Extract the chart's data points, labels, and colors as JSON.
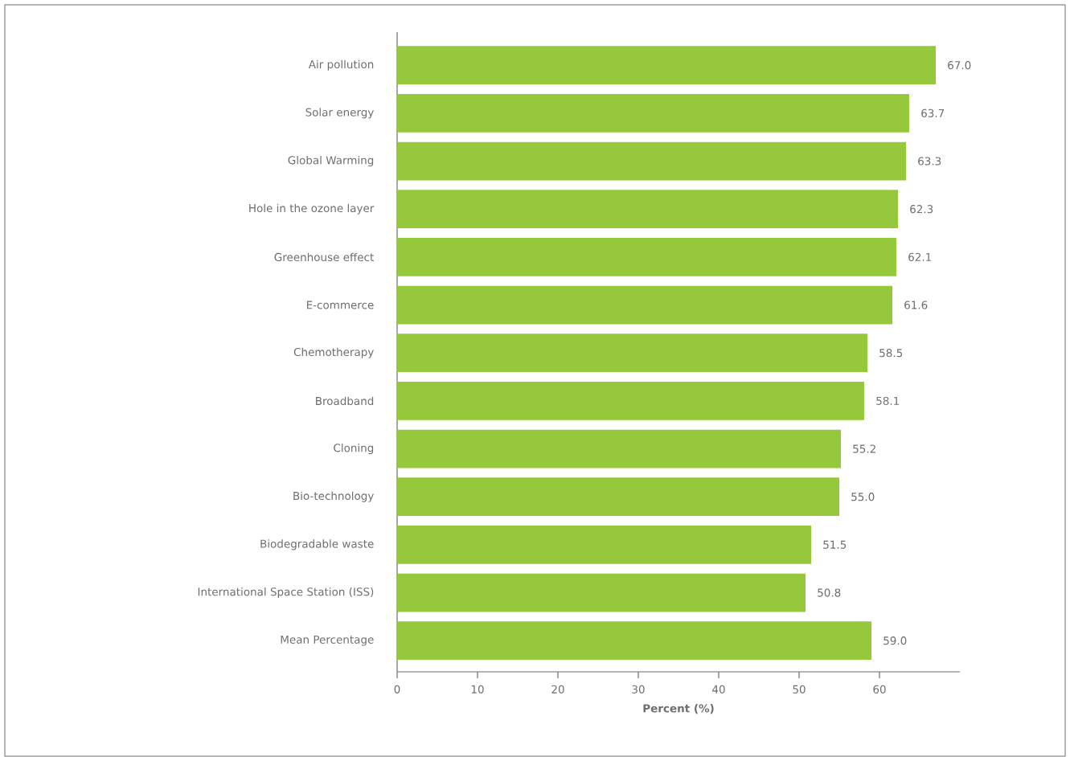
{
  "chart_data": {
    "type": "bar",
    "orientation": "horizontal",
    "categories": [
      "Air pollution",
      "Solar energy",
      "Global Warming",
      "Hole in the ozone layer",
      "Greenhouse effect",
      "E-commerce",
      "Chemotherapy",
      "Broadband",
      "Cloning",
      "Bio-technology",
      "Biodegradable waste",
      "International Space Station (ISS)",
      "Mean Percentage"
    ],
    "values": [
      67.0,
      63.7,
      63.3,
      62.3,
      62.1,
      61.6,
      58.5,
      58.1,
      55.2,
      55.0,
      51.5,
      50.8,
      59.0
    ],
    "value_labels": [
      "67.0",
      "63.7",
      "63.3",
      "62.3",
      "62.1",
      "61.6",
      "58.5",
      "58.1",
      "55.2",
      "55.0",
      "51.5",
      "50.8",
      "59.0"
    ],
    "color": "#96c83c",
    "xlabel": "Percent (%)",
    "xlim": [
      0,
      70
    ],
    "xticks": [
      0,
      10,
      20,
      30,
      40,
      50,
      60
    ],
    "grid": false
  }
}
